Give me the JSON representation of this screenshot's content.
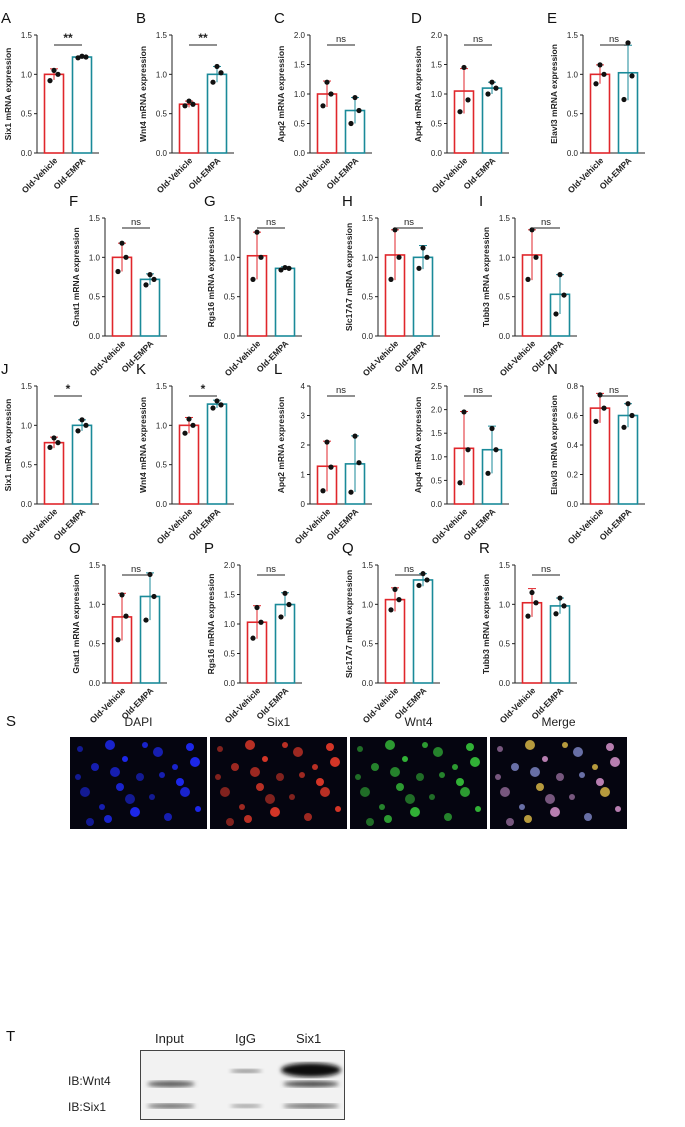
{
  "charts": [
    {
      "letter": "A",
      "ylabel": "Six1 mRNA expression",
      "ylim": [
        0,
        1.5
      ],
      "ticks": [
        0.0,
        0.5,
        1.0,
        1.5
      ],
      "categories": [
        "Old-Vehicle",
        "Old-EMPA"
      ],
      "means": [
        1.0,
        1.22
      ],
      "sd": [
        0.07,
        0.01
      ],
      "points": [
        [
          0.92,
          1.0,
          1.05
        ],
        [
          1.21,
          1.22,
          1.23
        ]
      ],
      "sig": "**"
    },
    {
      "letter": "B",
      "ylabel": "Wnt4  mRNA expression",
      "ylim": [
        0,
        1.5
      ],
      "ticks": [
        0.0,
        0.5,
        1.0,
        1.5
      ],
      "categories": [
        "Old-Vehicle",
        "Old-EMPA"
      ],
      "means": [
        0.62,
        1.0
      ],
      "sd": [
        0.04,
        0.1
      ],
      "points": [
        [
          0.6,
          0.62,
          0.66
        ],
        [
          0.9,
          1.02,
          1.1
        ]
      ],
      "sig": "**"
    },
    {
      "letter": "C",
      "ylabel": "Apq2 mRNA expression",
      "ylim": [
        0,
        2.0
      ],
      "ticks": [
        0.0,
        0.5,
        1.0,
        1.5,
        2.0
      ],
      "categories": [
        "Old-Vehicle",
        "Old-EMPA"
      ],
      "means": [
        1.0,
        0.72
      ],
      "sd": [
        0.22,
        0.22
      ],
      "points": [
        [
          0.8,
          1.0,
          1.2
        ],
        [
          0.5,
          0.72,
          0.94
        ]
      ],
      "sig": "ns"
    },
    {
      "letter": "D",
      "ylabel": "Apq4 mRNA expression",
      "ylim": [
        0,
        2.0
      ],
      "ticks": [
        0.0,
        0.5,
        1.0,
        1.5,
        2.0
      ],
      "categories": [
        "Old-Vehicle",
        "Old-EMPA"
      ],
      "means": [
        1.05,
        1.1
      ],
      "sd": [
        0.38,
        0.1
      ],
      "points": [
        [
          0.7,
          0.9,
          1.45
        ],
        [
          1.0,
          1.1,
          1.2
        ]
      ],
      "sig": "ns"
    },
    {
      "letter": "E",
      "ylabel": "Elavl3 mRNA expression",
      "ylim": [
        0,
        1.5
      ],
      "ticks": [
        0.0,
        0.5,
        1.0,
        1.5
      ],
      "categories": [
        "Old-Vehicle",
        "Old-EMPA"
      ],
      "means": [
        1.0,
        1.02
      ],
      "sd": [
        0.12,
        0.35
      ],
      "points": [
        [
          0.88,
          1.0,
          1.12
        ],
        [
          0.68,
          0.98,
          1.4
        ]
      ],
      "sig": "ns"
    },
    {
      "letter": "F",
      "ylabel": "Gnat1 mRNA expression",
      "ylim": [
        0,
        1.5
      ],
      "ticks": [
        0.0,
        0.5,
        1.0,
        1.5
      ],
      "categories": [
        "Old-Vehicle",
        "Old-EMPA"
      ],
      "means": [
        1.0,
        0.72
      ],
      "sd": [
        0.18,
        0.07
      ],
      "points": [
        [
          0.82,
          1.0,
          1.18
        ],
        [
          0.65,
          0.72,
          0.78
        ]
      ],
      "sig": "ns"
    },
    {
      "letter": "G",
      "ylabel": "Rgs16  mRNA expression",
      "ylim": [
        0,
        1.5
      ],
      "ticks": [
        0.0,
        0.5,
        1.0,
        1.5
      ],
      "categories": [
        "Old-Vehicle",
        "Old-EMPA"
      ],
      "means": [
        1.02,
        0.86
      ],
      "sd": [
        0.3,
        0.02
      ],
      "points": [
        [
          0.72,
          1.0,
          1.32
        ],
        [
          0.84,
          0.86,
          0.87
        ]
      ],
      "sig": "ns"
    },
    {
      "letter": "H",
      "ylabel": "Slc17A7  mRNA expression",
      "ylim": [
        0,
        1.5
      ],
      "ticks": [
        0.0,
        0.5,
        1.0,
        1.5
      ],
      "categories": [
        "Old-Vehicle",
        "Old-EMPA"
      ],
      "means": [
        1.03,
        1.0
      ],
      "sd": [
        0.32,
        0.15
      ],
      "points": [
        [
          0.72,
          1.0,
          1.35
        ],
        [
          0.86,
          1.0,
          1.12
        ]
      ],
      "sig": "ns"
    },
    {
      "letter": "I",
      "ylabel": "Tubb3  mRNA expression",
      "ylim": [
        0,
        1.5
      ],
      "ticks": [
        0.0,
        0.5,
        1.0,
        1.5
      ],
      "categories": [
        "Old-Vehicle",
        "Old-EMPA"
      ],
      "means": [
        1.03,
        0.53
      ],
      "sd": [
        0.32,
        0.25
      ],
      "points": [
        [
          0.72,
          1.0,
          1.35
        ],
        [
          0.28,
          0.52,
          0.78
        ]
      ],
      "sig": "ns"
    },
    {
      "letter": "J",
      "ylabel": "Six1 mRNA expression",
      "ylim": [
        0,
        1.5
      ],
      "ticks": [
        0.0,
        0.5,
        1.0,
        1.5
      ],
      "categories": [
        "Old-Vehicle",
        "Old-EMPA"
      ],
      "means": [
        0.78,
        1.0
      ],
      "sd": [
        0.07,
        0.07
      ],
      "points": [
        [
          0.72,
          0.78,
          0.84
        ],
        [
          0.93,
          1.0,
          1.07
        ]
      ],
      "sig": "*"
    },
    {
      "letter": "K",
      "ylabel": "Wnt4  mRNA expression",
      "ylim": [
        0,
        1.5
      ],
      "ticks": [
        0.0,
        0.5,
        1.0,
        1.5
      ],
      "categories": [
        "Old-Vehicle",
        "Old-EMPA"
      ],
      "means": [
        1.0,
        1.27
      ],
      "sd": [
        0.1,
        0.05
      ],
      "points": [
        [
          0.9,
          1.0,
          1.08
        ],
        [
          1.22,
          1.26,
          1.31
        ]
      ],
      "sig": "*"
    },
    {
      "letter": "L",
      "ylabel": "Apq2 mRNA expression",
      "ylim": [
        0,
        4
      ],
      "ticks": [
        0,
        1,
        2,
        3,
        4
      ],
      "categories": [
        "Old-Vehicle",
        "Old-EMPA"
      ],
      "means": [
        1.28,
        1.36
      ],
      "sd": [
        0.85,
        0.95
      ],
      "points": [
        [
          0.45,
          1.25,
          2.1
        ],
        [
          0.4,
          1.4,
          2.3
        ]
      ],
      "sig": "ns"
    },
    {
      "letter": "M",
      "ylabel": "Apq4 mRNA expression",
      "ylim": [
        0,
        2.5
      ],
      "ticks": [
        0.0,
        0.5,
        1.0,
        1.5,
        2.0,
        2.5
      ],
      "categories": [
        "Old-Vehicle",
        "Old-EMPA"
      ],
      "means": [
        1.18,
        1.15
      ],
      "sd": [
        0.78,
        0.5
      ],
      "points": [
        [
          0.45,
          1.15,
          1.95
        ],
        [
          0.65,
          1.15,
          1.6
        ]
      ],
      "sig": "ns"
    },
    {
      "letter": "N",
      "ylabel": "Elavl3 mRNA expression",
      "ylim": [
        0,
        0.8
      ],
      "ticks": [
        0.0,
        0.2,
        0.4,
        0.6,
        0.8
      ],
      "categories": [
        "Old-Vehicle",
        "Old-EMPA"
      ],
      "means": [
        0.65,
        0.6
      ],
      "sd": [
        0.1,
        0.08
      ],
      "points": [
        [
          0.56,
          0.65,
          0.74
        ],
        [
          0.52,
          0.6,
          0.68
        ]
      ],
      "sig": "ns"
    },
    {
      "letter": "O",
      "ylabel": "Gnat1 mRNA expression",
      "ylim": [
        0,
        1.5
      ],
      "ticks": [
        0.0,
        0.5,
        1.0,
        1.5
      ],
      "categories": [
        "Old-Vehicle",
        "Old-EMPA"
      ],
      "means": [
        0.84,
        1.1
      ],
      "sd": [
        0.3,
        0.3
      ],
      "points": [
        [
          0.55,
          0.85,
          1.12
        ],
        [
          0.8,
          1.1,
          1.38
        ]
      ],
      "sig": "ns"
    },
    {
      "letter": "P",
      "ylabel": "Rgs16  mRNA expression",
      "ylim": [
        0,
        2.0
      ],
      "ticks": [
        0.0,
        0.5,
        1.0,
        1.5,
        2.0
      ],
      "categories": [
        "Old-Vehicle",
        "Old-EMPA"
      ],
      "means": [
        1.03,
        1.33
      ],
      "sd": [
        0.28,
        0.2
      ],
      "points": [
        [
          0.76,
          1.03,
          1.28
        ],
        [
          1.12,
          1.33,
          1.52
        ]
      ],
      "sig": "ns"
    },
    {
      "letter": "Q",
      "ylabel": "Slc17A7  mRNA expression",
      "ylim": [
        0,
        1.5
      ],
      "ticks": [
        0.0,
        0.5,
        1.0,
        1.5
      ],
      "categories": [
        "Old-Vehicle",
        "Old-EMPA"
      ],
      "means": [
        1.06,
        1.31
      ],
      "sd": [
        0.15,
        0.08
      ],
      "points": [
        [
          0.93,
          1.06,
          1.19
        ],
        [
          1.24,
          1.31,
          1.39
        ]
      ],
      "sig": "ns"
    },
    {
      "letter": "R",
      "ylabel": "Tubb3  mRNA expression",
      "ylim": [
        0,
        1.5
      ],
      "ticks": [
        0.0,
        0.5,
        1.0,
        1.5
      ],
      "categories": [
        "Old-Vehicle",
        "Old-EMPA"
      ],
      "means": [
        1.02,
        0.98
      ],
      "sd": [
        0.18,
        0.1
      ],
      "points": [
        [
          0.85,
          1.02,
          1.15
        ],
        [
          0.88,
          0.98,
          1.08
        ]
      ],
      "sig": "ns"
    }
  ],
  "colors": {
    "vehicle": "#e0262b",
    "empa": "#1a8a99",
    "dot": "#111111"
  },
  "micro": {
    "letter": "S",
    "panels": [
      {
        "title": "DAPI",
        "color": "#1f2bff"
      },
      {
        "title": "Six1",
        "color": "#e83a2a"
      },
      {
        "title": "Wnt4",
        "color": "#36c23a"
      },
      {
        "title": "Merge",
        "color": "#c9a3d9"
      }
    ]
  },
  "blot": {
    "letter": "T",
    "lanes": [
      "Input",
      "IgG",
      "Six1"
    ],
    "rows": [
      "IB:Wnt4",
      "IB:Six1"
    ]
  }
}
